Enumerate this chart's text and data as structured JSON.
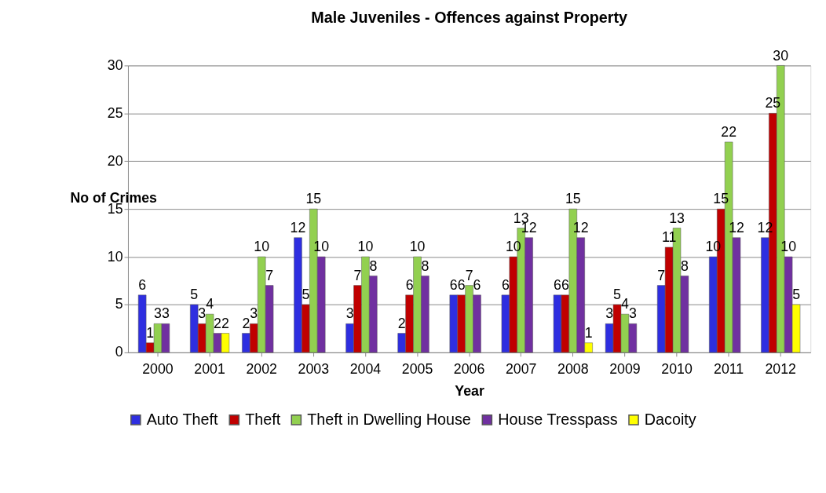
{
  "chart_data": {
    "type": "bar",
    "title": "Male Juveniles - Offences against Property",
    "xlabel": "Year",
    "ylabel": "No of Crimes",
    "categories": [
      "2000",
      "2001",
      "2002",
      "2003",
      "2004",
      "2005",
      "2006",
      "2007",
      "2008",
      "2009",
      "2010",
      "2011",
      "2012"
    ],
    "series": [
      {
        "name": "Auto Theft",
        "color": "#2e2ee0",
        "values": [
          6,
          5,
          2,
          12,
          3,
          2,
          6,
          6,
          6,
          3,
          7,
          10,
          12
        ]
      },
      {
        "name": "Theft",
        "color": "#c00000",
        "values": [
          1,
          3,
          3,
          5,
          7,
          6,
          6,
          10,
          6,
          5,
          11,
          15,
          25
        ]
      },
      {
        "name": "Theft in Dwelling House",
        "color": "#92d050",
        "values": [
          3,
          4,
          10,
          15,
          10,
          10,
          7,
          13,
          15,
          4,
          13,
          22,
          30
        ]
      },
      {
        "name": "House Tresspass",
        "color": "#7030a0",
        "values": [
          3,
          2,
          7,
          10,
          8,
          8,
          6,
          12,
          12,
          3,
          8,
          12,
          10
        ]
      },
      {
        "name": "Dacoity",
        "color": "#ffff00",
        "values": [
          null,
          2,
          null,
          null,
          null,
          null,
          null,
          null,
          1,
          null,
          null,
          null,
          5
        ]
      }
    ],
    "ylim": [
      0,
      30
    ],
    "yticks": [
      0,
      5,
      10,
      15,
      20,
      25,
      30
    ],
    "grid": "y",
    "legend": "bottom",
    "data_labels": true
  }
}
